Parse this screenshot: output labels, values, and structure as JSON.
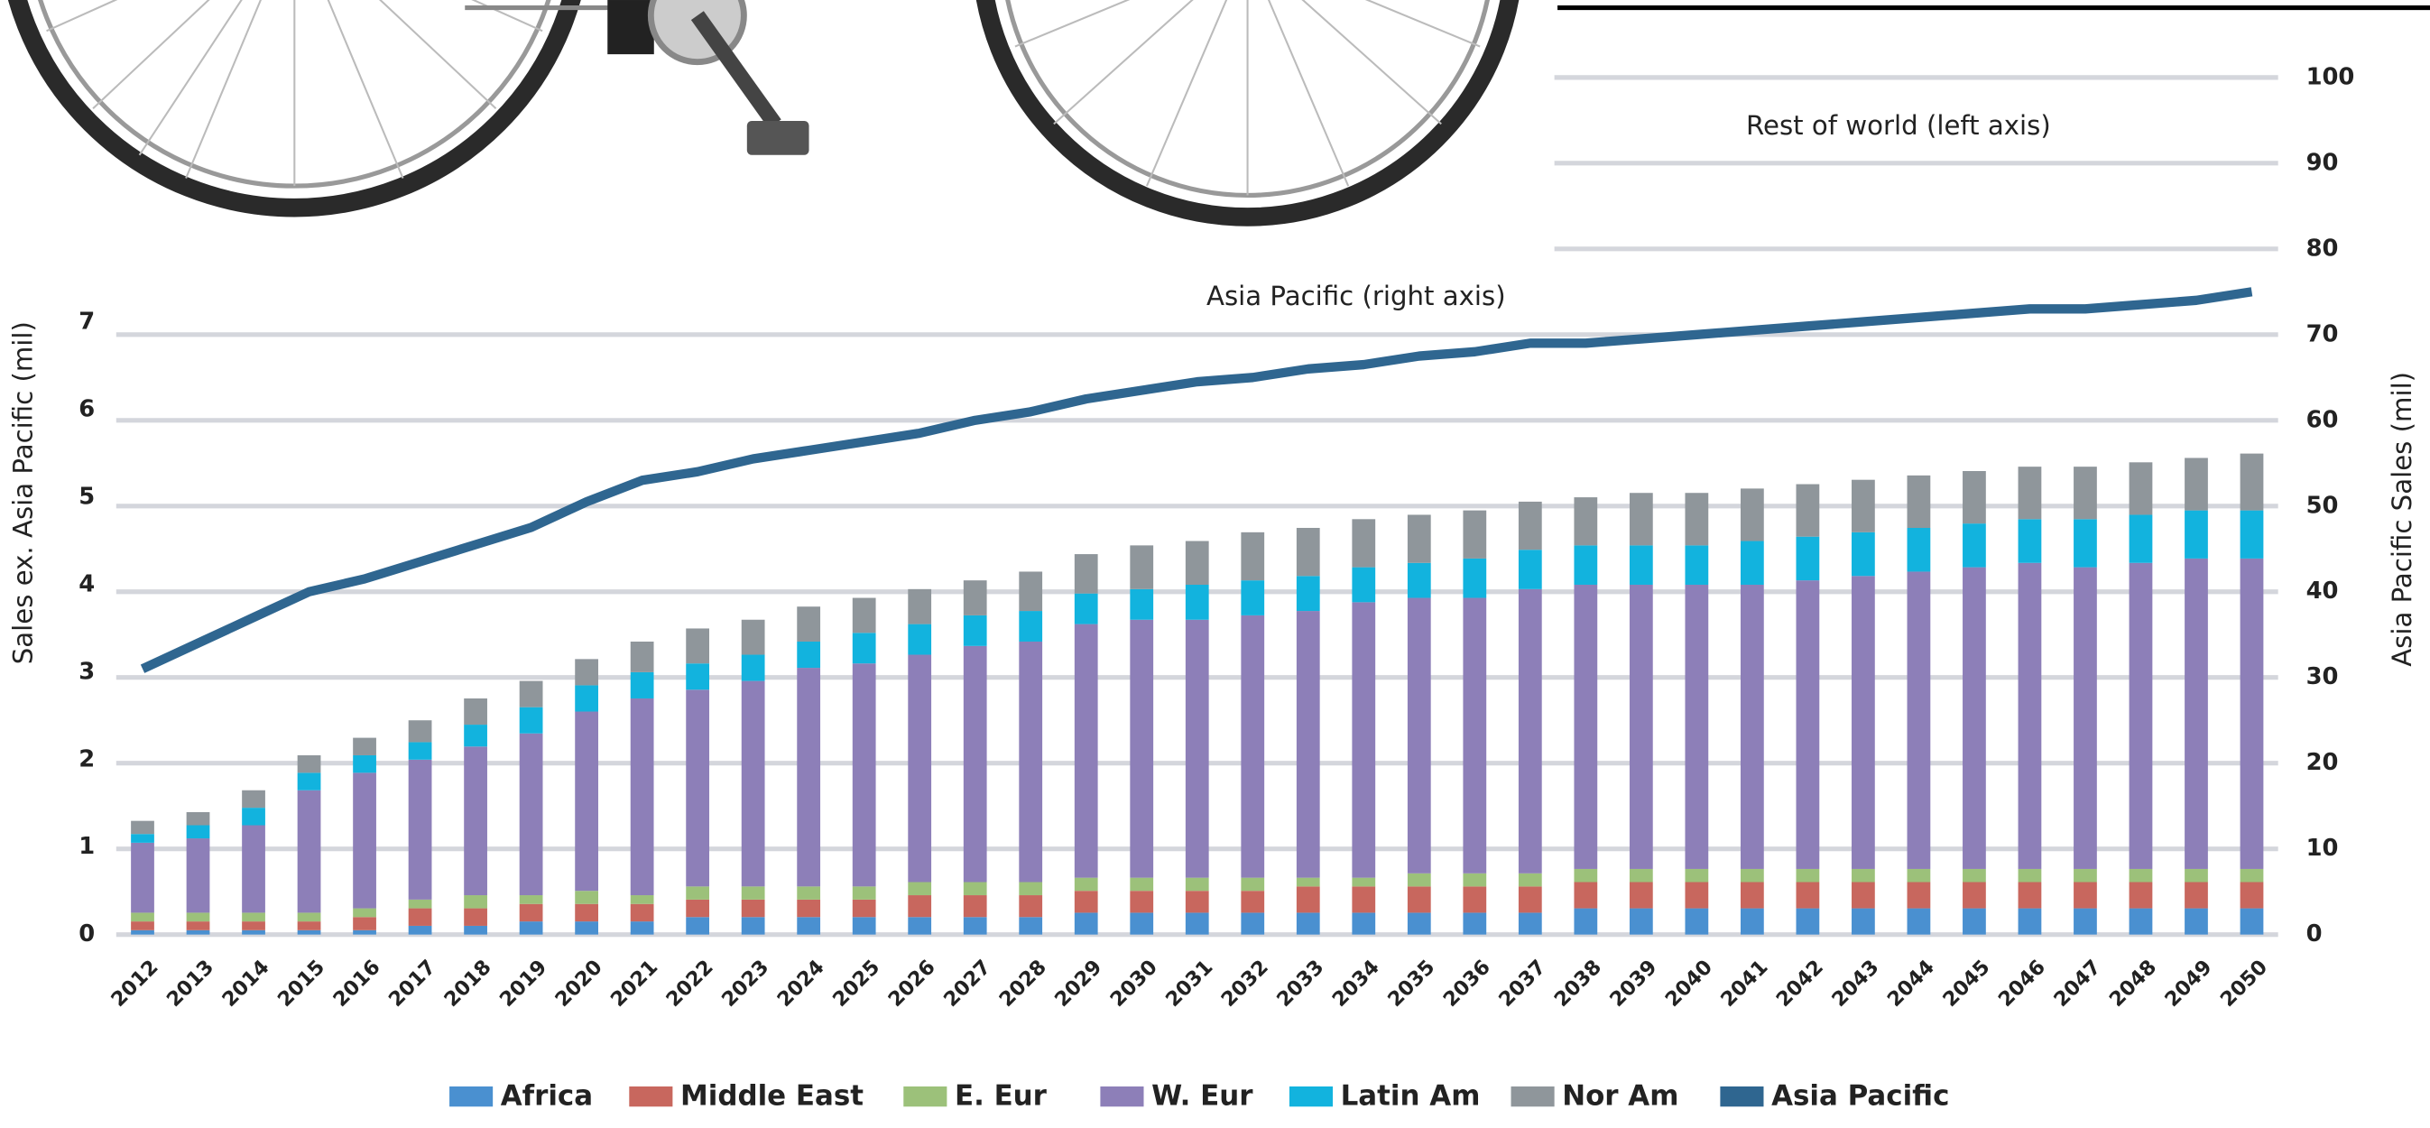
{
  "chart_data": {
    "type": "bar",
    "stacked": true,
    "y_label": "Sales ex. Asia Pacific (mil)",
    "y2_label": "Asia Pacific Sales (mil)",
    "annotations": [
      "Rest of world (left axis)",
      "Asia Pacific (right axis)"
    ],
    "categories": [
      "2012",
      "2013",
      "2014",
      "2015",
      "2016",
      "2017",
      "2018",
      "2019",
      "2020",
      "2021",
      "2022",
      "2023",
      "2024",
      "2025",
      "2026",
      "2027",
      "2028",
      "2029",
      "2030",
      "2031",
      "2032",
      "2033",
      "2034",
      "2035",
      "2036",
      "2037",
      "2038",
      "2039",
      "2040",
      "2041",
      "2042",
      "2043",
      "2044",
      "2045",
      "2046",
      "2047",
      "2048",
      "2049",
      "2050"
    ],
    "series": [
      {
        "name": "Africa",
        "color": "#4a90d0",
        "values": [
          0.05,
          0.05,
          0.05,
          0.05,
          0.05,
          0.1,
          0.1,
          0.15,
          0.15,
          0.15,
          0.2,
          0.2,
          0.2,
          0.2,
          0.2,
          0.2,
          0.2,
          0.25,
          0.25,
          0.25,
          0.25,
          0.25,
          0.25,
          0.25,
          0.25,
          0.25,
          0.3,
          0.3,
          0.3,
          0.3,
          0.3,
          0.3,
          0.3,
          0.3,
          0.3,
          0.3,
          0.3,
          0.3,
          0.3
        ]
      },
      {
        "name": "Middle East",
        "color": "#c8675e",
        "values": [
          0.1,
          0.1,
          0.1,
          0.1,
          0.15,
          0.2,
          0.2,
          0.2,
          0.2,
          0.2,
          0.2,
          0.2,
          0.2,
          0.2,
          0.25,
          0.25,
          0.25,
          0.25,
          0.25,
          0.25,
          0.25,
          0.3,
          0.3,
          0.3,
          0.3,
          0.3,
          0.3,
          0.3,
          0.3,
          0.3,
          0.3,
          0.3,
          0.3,
          0.3,
          0.3,
          0.3,
          0.3,
          0.3,
          0.3
        ]
      },
      {
        "name": "E. Eur",
        "color": "#9cc17a",
        "values": [
          0.1,
          0.1,
          0.1,
          0.1,
          0.1,
          0.1,
          0.15,
          0.1,
          0.15,
          0.1,
          0.15,
          0.15,
          0.15,
          0.15,
          0.15,
          0.15,
          0.15,
          0.15,
          0.15,
          0.15,
          0.15,
          0.1,
          0.1,
          0.15,
          0.15,
          0.15,
          0.15,
          0.15,
          0.15,
          0.15,
          0.15,
          0.15,
          0.15,
          0.15,
          0.15,
          0.15,
          0.15,
          0.15,
          0.15
        ]
      },
      {
        "name": "W. Eur",
        "color": "#8d7fb8",
        "values": [
          0.8,
          0.85,
          1.0,
          1.4,
          1.55,
          1.6,
          1.7,
          1.85,
          2.05,
          2.25,
          2.25,
          2.35,
          2.5,
          2.55,
          2.6,
          2.7,
          2.75,
          2.9,
          2.95,
          2.95,
          3.0,
          3.05,
          3.15,
          3.15,
          3.15,
          3.25,
          3.25,
          3.25,
          3.25,
          3.25,
          3.3,
          3.35,
          3.4,
          3.45,
          3.5,
          3.45,
          3.5,
          3.55,
          3.55
        ]
      },
      {
        "name": "Latin Am",
        "color": "#12b3de",
        "values": [
          0.1,
          0.15,
          0.2,
          0.2,
          0.2,
          0.2,
          0.25,
          0.3,
          0.3,
          0.3,
          0.3,
          0.3,
          0.3,
          0.35,
          0.35,
          0.35,
          0.35,
          0.35,
          0.35,
          0.4,
          0.4,
          0.4,
          0.4,
          0.4,
          0.45,
          0.45,
          0.45,
          0.45,
          0.45,
          0.5,
          0.5,
          0.5,
          0.5,
          0.5,
          0.5,
          0.55,
          0.55,
          0.55,
          0.55
        ]
      },
      {
        "name": "Nor Am",
        "color": "#8f969b",
        "values": [
          0.15,
          0.15,
          0.2,
          0.2,
          0.2,
          0.25,
          0.3,
          0.3,
          0.3,
          0.35,
          0.4,
          0.4,
          0.4,
          0.4,
          0.4,
          0.4,
          0.45,
          0.45,
          0.5,
          0.5,
          0.55,
          0.55,
          0.55,
          0.55,
          0.55,
          0.55,
          0.55,
          0.6,
          0.6,
          0.6,
          0.6,
          0.6,
          0.6,
          0.6,
          0.6,
          0.6,
          0.6,
          0.6,
          0.65
        ]
      },
      {
        "name": "Asia Pacific",
        "color": "#2f6690",
        "type": "line",
        "axis": "y2",
        "values": [
          31,
          34,
          37,
          40,
          41.5,
          43.5,
          45.5,
          47.5,
          50.5,
          53,
          54,
          55.5,
          56.5,
          57.5,
          58.5,
          60,
          61,
          62.5,
          63.5,
          64.5,
          65,
          66,
          66.5,
          67.5,
          68,
          69,
          69,
          69.5,
          70,
          70.5,
          71,
          71.5,
          72,
          72.5,
          73,
          73,
          73.5,
          74,
          75
        ]
      }
    ],
    "ylim": [
      0,
      9.8
    ],
    "yticks": [
      0,
      1,
      2,
      3,
      4,
      5,
      6,
      7,
      8
    ],
    "y2lim": [
      0,
      100
    ],
    "y2ticks": [
      0,
      10,
      20,
      30,
      40,
      50,
      60,
      70,
      80,
      90,
      100
    ],
    "grid": true
  }
}
